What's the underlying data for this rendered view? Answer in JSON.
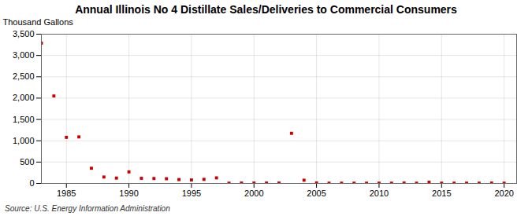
{
  "chart_data": {
    "type": "scatter",
    "title": "Annual Illinois No 4 Distillate Sales/Deliveries to Commercial Consumers",
    "ylabel": "Thousand Gallons",
    "annotations": [
      "Source: U.S. Energy Information Administration"
    ],
    "x": [
      1983,
      1984,
      1985,
      1986,
      1987,
      1988,
      1989,
      1990,
      1991,
      1992,
      1993,
      1994,
      1995,
      1996,
      1997,
      1998,
      1999,
      2000,
      2001,
      2002,
      2003,
      2004,
      2005,
      2006,
      2007,
      2008,
      2009,
      2010,
      2011,
      2012,
      2013,
      2014,
      2015,
      2016,
      2017,
      2018,
      2019,
      2020
    ],
    "values": [
      3290,
      2050,
      1080,
      1090,
      355,
      150,
      125,
      270,
      120,
      115,
      110,
      90,
      80,
      95,
      130,
      5,
      8,
      8,
      8,
      8,
      1175,
      75,
      10,
      5,
      5,
      5,
      5,
      5,
      5,
      8,
      5,
      28,
      5,
      5,
      5,
      5,
      8,
      5
    ],
    "color": "#cc0000",
    "marker": "square",
    "xlim": [
      1983,
      2021
    ],
    "ylim": [
      0,
      3500
    ],
    "xticks": [
      1985,
      1990,
      1995,
      2000,
      2005,
      2010,
      2015,
      2020
    ],
    "yticks": [
      0,
      500,
      {
        "value": 1000,
        "label": "1,000"
      },
      {
        "value": 1500,
        "label": "1,500"
      },
      {
        "value": 2000,
        "label": "2,000"
      },
      {
        "value": 2500,
        "label": "2,500"
      },
      {
        "value": 3000,
        "label": "3,000"
      },
      {
        "value": 3500,
        "label": "3,500"
      }
    ],
    "grid": true
  }
}
